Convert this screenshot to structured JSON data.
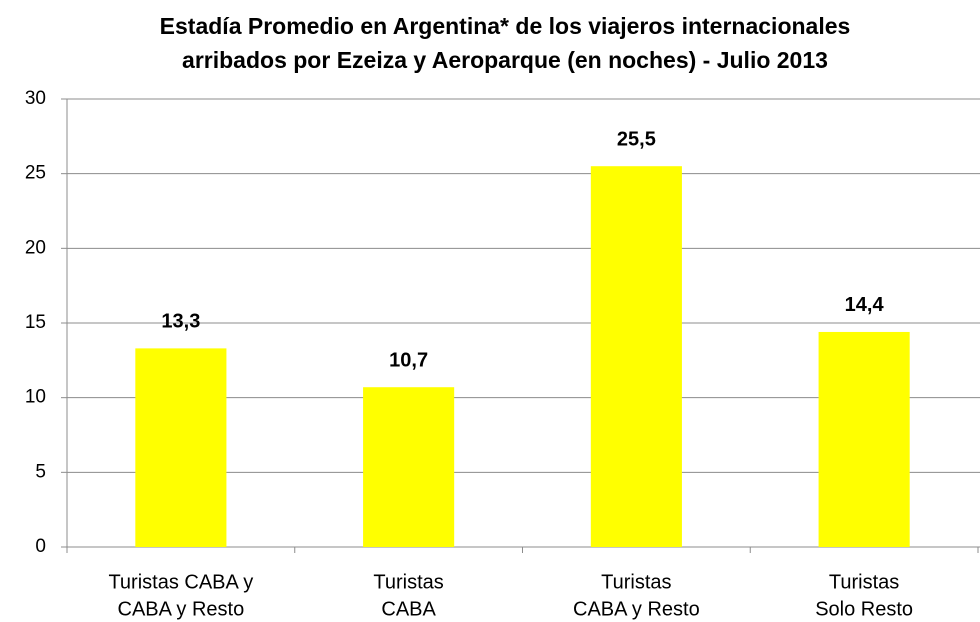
{
  "chart_data": {
    "type": "bar",
    "title": [
      "Estadía Promedio en Argentina* de los viajeros internacionales",
      "arribados por Ezeiza y Aeroparque (en noches) - Julio 2013"
    ],
    "categories": [
      [
        "Turistas CABA y",
        "CABA y Resto"
      ],
      [
        "Turistas",
        "CABA"
      ],
      [
        "Turistas",
        "CABA y Resto"
      ],
      [
        "Turistas",
        "Solo Resto"
      ]
    ],
    "values": [
      13.3,
      10.7,
      25.5,
      14.4
    ],
    "value_labels": [
      "13,3",
      "10,7",
      "25,5",
      "14,4"
    ],
    "color": "#ffff00",
    "ylim": [
      0,
      30
    ],
    "yticks": [
      0,
      5,
      10,
      15,
      20,
      25,
      30
    ],
    "grid": true
  }
}
